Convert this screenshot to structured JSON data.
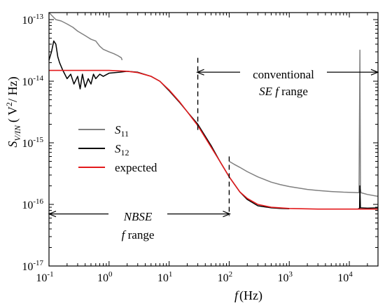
{
  "chart_data": {
    "type": "line",
    "title": "",
    "xlabel": {
      "base": "f",
      "unit": "(Hz)"
    },
    "ylabel": {
      "base": "S",
      "sub": "V/IN",
      "unit_open": "( V",
      "unit_sup": "2",
      "unit_close": "/ Hz)"
    },
    "xscale": "log",
    "yscale": "log",
    "xlim": [
      0.1,
      30000
    ],
    "ylim": [
      1e-17,
      1.3e-13
    ],
    "x_ticks": [
      {
        "v": 0.1,
        "b": "10",
        "e": "-1"
      },
      {
        "v": 1,
        "b": "10",
        "e": "0"
      },
      {
        "v": 10,
        "b": "10",
        "e": "1"
      },
      {
        "v": 100,
        "b": "10",
        "e": "2"
      },
      {
        "v": 1000,
        "b": "10",
        "e": "3"
      },
      {
        "v": 10000,
        "b": "10",
        "e": "4"
      }
    ],
    "y_ticks": [
      {
        "v": 1e-17,
        "b": "10",
        "e": "-17"
      },
      {
        "v": 1e-16,
        "b": "10",
        "e": "-16"
      },
      {
        "v": 1e-15,
        "b": "10",
        "e": "-15"
      },
      {
        "v": 1e-14,
        "b": "10",
        "e": "-14"
      },
      {
        "v": 1e-13,
        "b": "10",
        "e": "-13"
      }
    ],
    "grid": false,
    "legend_position": "left",
    "series": [
      {
        "name": "S11",
        "legend_base": "S",
        "legend_sub": "11",
        "color": "#808080",
        "segments": [
          [
            [
              0.1,
              1.3e-13
            ],
            [
              0.13,
              1e-13
            ],
            [
              0.16,
              9.5e-14
            ],
            [
              0.2,
              8.5e-14
            ],
            [
              0.25,
              7.5e-14
            ],
            [
              0.3,
              6.5e-14
            ],
            [
              0.4,
              5.5e-14
            ],
            [
              0.5,
              4.8e-14
            ],
            [
              0.6,
              4.5e-14
            ],
            [
              0.7,
              3.7e-14
            ],
            [
              0.8,
              3.3e-14
            ],
            [
              1.0,
              3e-14
            ],
            [
              1.2,
              2.8e-14
            ],
            [
              1.4,
              2.6e-14
            ],
            [
              1.6,
              2.4e-14
            ],
            [
              1.65,
              2.2e-14
            ]
          ],
          [
            [
              100,
              5e-16
            ],
            [
              120,
              4.5e-16
            ],
            [
              150,
              4e-16
            ],
            [
              200,
              3.4e-16
            ],
            [
              300,
              2.8e-16
            ],
            [
              500,
              2.3e-16
            ],
            [
              700,
              2.1e-16
            ],
            [
              1000,
              1.95e-16
            ],
            [
              2000,
              1.75e-16
            ],
            [
              3000,
              1.68e-16
            ],
            [
              5000,
              1.62e-16
            ],
            [
              8000,
              1.58e-16
            ],
            [
              12000,
              1.56e-16
            ],
            [
              14500,
              1.55e-16
            ],
            [
              15000,
              3.2e-14
            ],
            [
              15300,
              1.8e-16
            ],
            [
              15600,
              1.55e-16
            ],
            [
              20000,
              1.45e-16
            ],
            [
              30000,
              1.35e-16
            ]
          ]
        ]
      },
      {
        "name": "S12",
        "legend_base": "S",
        "legend_sub": "12",
        "color": "#000000",
        "segments": [
          [
            [
              0.1,
              2.2e-14
            ],
            [
              0.11,
              3e-14
            ],
            [
              0.12,
              4.5e-14
            ],
            [
              0.13,
              4e-14
            ],
            [
              0.14,
              2.5e-14
            ],
            [
              0.15,
              2e-14
            ],
            [
              0.17,
              1.5e-14
            ],
            [
              0.2,
              1.1e-14
            ],
            [
              0.23,
              1.3e-14
            ],
            [
              0.26,
              9e-15
            ],
            [
              0.3,
              1.2e-14
            ],
            [
              0.33,
              7.5e-15
            ],
            [
              0.36,
              1.3e-14
            ],
            [
              0.4,
              8e-15
            ],
            [
              0.45,
              1.1e-14
            ],
            [
              0.5,
              9e-15
            ],
            [
              0.55,
              1.3e-14
            ],
            [
              0.6,
              1.1e-14
            ],
            [
              0.7,
              1.3e-14
            ],
            [
              0.8,
              1.2e-14
            ],
            [
              1.0,
              1.35e-14
            ],
            [
              1.5,
              1.4e-14
            ],
            [
              2.0,
              1.45e-14
            ],
            [
              3.0,
              1.4e-14
            ],
            [
              5.0,
              1.2e-14
            ],
            [
              7.0,
              1e-14
            ],
            [
              10,
              7e-15
            ],
            [
              15,
              4.5e-15
            ],
            [
              20,
              3.2e-15
            ],
            [
              30,
              2e-15
            ],
            [
              50,
              9e-16
            ],
            [
              70,
              5e-16
            ],
            [
              100,
              2.8e-16
            ],
            [
              150,
              1.6e-16
            ],
            [
              200,
              1.2e-16
            ],
            [
              300,
              9.5e-17
            ],
            [
              500,
              8.8e-17
            ],
            [
              700,
              8.6e-17
            ],
            [
              1000,
              8.5e-17
            ]
          ],
          [
            [
              14000,
              8.5e-17
            ],
            [
              14800,
              8.6e-17
            ],
            [
              15000,
              2e-16
            ],
            [
              15300,
              8.8e-17
            ],
            [
              20000,
              8.7e-17
            ],
            [
              30000,
              8.8e-17
            ]
          ]
        ]
      },
      {
        "name": "expected",
        "legend_base": "expected",
        "legend_sub": "",
        "color": "#e31a1c",
        "segments": [
          [
            [
              0.1,
              1.5e-14
            ],
            [
              0.3,
              1.5e-14
            ],
            [
              1.0,
              1.5e-14
            ],
            [
              2.0,
              1.45e-14
            ],
            [
              3.0,
              1.38e-14
            ],
            [
              5.0,
              1.2e-14
            ],
            [
              7.0,
              1e-14
            ],
            [
              10,
              7.2e-15
            ],
            [
              15,
              4.6e-15
            ],
            [
              20,
              3.2e-15
            ],
            [
              30,
              1.9e-15
            ],
            [
              50,
              8.5e-16
            ],
            [
              70,
              5e-16
            ],
            [
              100,
              2.8e-16
            ],
            [
              150,
              1.6e-16
            ],
            [
              200,
              1.25e-16
            ],
            [
              300,
              1e-16
            ],
            [
              500,
              9e-17
            ],
            [
              1000,
              8.6e-17
            ],
            [
              3000,
              8.4e-17
            ],
            [
              10000,
              8.4e-17
            ],
            [
              30000,
              8.4e-17
            ]
          ]
        ]
      }
    ],
    "vlines": [
      {
        "x": 30,
        "y": [
          1.6e-15,
          2.4e-14
        ]
      },
      {
        "x": 100,
        "y": [
          6.5e-17,
          6e-16
        ]
      }
    ],
    "annotations": {
      "conventional": {
        "line1": "conventional",
        "line2_italic": "SE f",
        "line2_rest": " range",
        "arrow_from": 30,
        "arrow_to": 30000,
        "arrow_y": 1.4e-14
      },
      "nbse": {
        "line1": "NBSE",
        "line2_italic": "f",
        "line2_rest": " range",
        "arrow_from": 0.1,
        "arrow_to": 100,
        "arrow_y": 7e-17
      }
    }
  }
}
